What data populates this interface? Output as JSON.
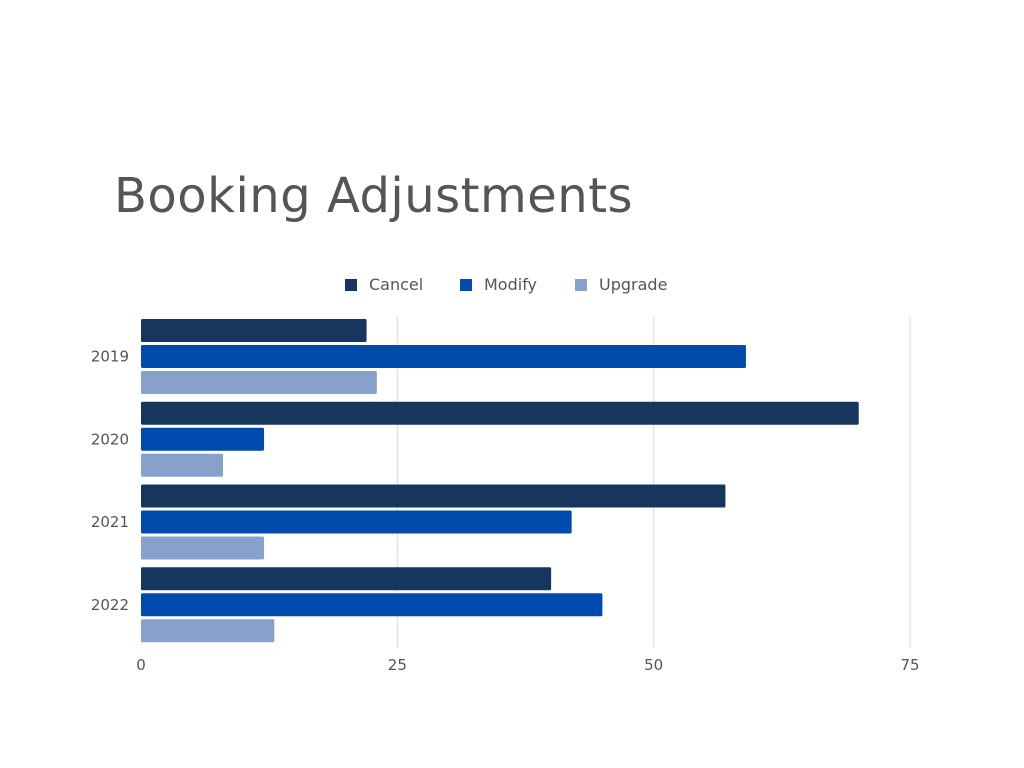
{
  "chart_data": {
    "type": "bar",
    "orientation": "horizontal",
    "title": "Booking Adjustments",
    "categories": [
      "2019",
      "2020",
      "2021",
      "2022"
    ],
    "series": [
      {
        "name": "Cancel",
        "color": "#17365d",
        "values": [
          22,
          70,
          57,
          40
        ]
      },
      {
        "name": "Modify",
        "color": "#004aad",
        "values": [
          59,
          12,
          42,
          45
        ]
      },
      {
        "name": "Upgrade",
        "color": "#86a2cc",
        "values": [
          23,
          8,
          12,
          13
        ]
      }
    ],
    "xlim": [
      0,
      75
    ],
    "xticks": [
      "0",
      "25",
      "50",
      "75"
    ],
    "xlabel": "",
    "ylabel": "",
    "grid": "vertical",
    "legend_position": "top-center"
  }
}
